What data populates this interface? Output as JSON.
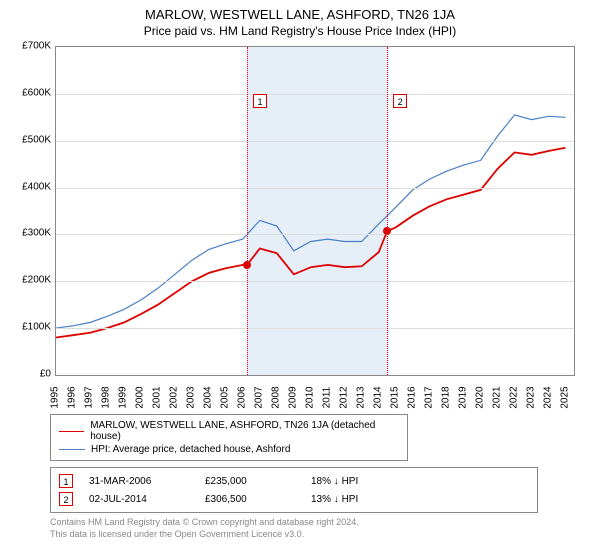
{
  "title": "MARLOW, WESTWELL LANE, ASHFORD, TN26 1JA",
  "subtitle": "Price paid vs. HM Land Registry's House Price Index (HPI)",
  "chart": {
    "type": "line",
    "background_color": "#ffffff",
    "shaded_band_color": "#e6eef7",
    "grid_color": "#dddddd",
    "axis_color": "#888888",
    "x_range": [
      1995,
      2025.5
    ],
    "x_ticks": [
      1995,
      1996,
      1997,
      1998,
      1999,
      2000,
      2001,
      2002,
      2003,
      2004,
      2005,
      2006,
      2007,
      2008,
      2009,
      2010,
      2011,
      2012,
      2013,
      2014,
      2015,
      2016,
      2017,
      2018,
      2019,
      2020,
      2021,
      2022,
      2023,
      2024,
      2025
    ],
    "y_range": [
      0,
      700
    ],
    "y_ticks": [
      0,
      100,
      200,
      300,
      400,
      500,
      600,
      700
    ],
    "y_prefix": "£",
    "y_suffix": "K",
    "shaded_band_x": [
      2006.25,
      2014.5
    ],
    "series": [
      {
        "label": "MARLOW, WESTWELL LANE, ASHFORD, TN26 1JA (detached house)",
        "color": "#dd0000",
        "line_width": 1.8,
        "points_x": [
          1995,
          1996,
          1997,
          1998,
          1999,
          2000,
          2001,
          2002,
          2003,
          2004,
          2005,
          2006,
          2006.25,
          2007,
          2008,
          2009,
          2010,
          2011,
          2012,
          2013,
          2014,
          2014.5,
          2015,
          2016,
          2017,
          2018,
          2019,
          2020,
          2021,
          2022,
          2023,
          2024,
          2025
        ],
        "points_y": [
          80,
          85,
          90,
          100,
          112,
          130,
          150,
          175,
          200,
          218,
          228,
          235,
          235,
          270,
          260,
          215,
          230,
          235,
          230,
          232,
          262,
          307,
          315,
          340,
          360,
          375,
          385,
          395,
          440,
          475,
          470,
          478,
          485
        ]
      },
      {
        "label": "HPI: Average price, detached house, Ashford",
        "color": "#4a7fc7",
        "line_width": 1.2,
        "points_x": [
          1995,
          1996,
          1997,
          1998,
          1999,
          2000,
          2001,
          2002,
          2003,
          2004,
          2005,
          2006,
          2007,
          2008,
          2009,
          2010,
          2011,
          2012,
          2013,
          2014,
          2015,
          2016,
          2017,
          2018,
          2019,
          2020,
          2021,
          2022,
          2023,
          2024,
          2025
        ],
        "points_y": [
          100,
          105,
          112,
          125,
          140,
          160,
          185,
          215,
          245,
          268,
          280,
          290,
          330,
          318,
          265,
          285,
          290,
          285,
          285,
          322,
          358,
          395,
          418,
          435,
          448,
          458,
          510,
          555,
          545,
          552,
          550
        ]
      }
    ],
    "sale_markers": [
      {
        "n": "1",
        "x": 2006.25,
        "y": 235,
        "box_y": 600
      },
      {
        "n": "2",
        "x": 2014.5,
        "y": 306.5,
        "box_y": 600
      }
    ],
    "sale_point_color": "#dd0000"
  },
  "legend_border_color": "#888888",
  "sales": [
    {
      "n": "1",
      "date": "31-MAR-2006",
      "price": "£235,000",
      "hpi": "18% ↓ HPI"
    },
    {
      "n": "2",
      "date": "02-JUL-2014",
      "price": "£306,500",
      "hpi": "13% ↓ HPI"
    }
  ],
  "footer_line1": "Contains HM Land Registry data © Crown copyright and database right 2024.",
  "footer_line2": "This data is licensed under the Open Government Licence v3.0."
}
